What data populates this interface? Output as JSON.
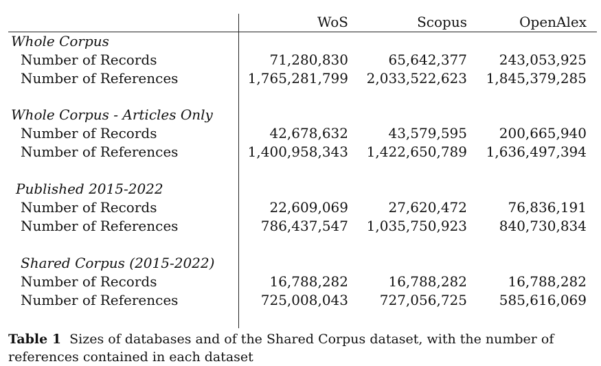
{
  "headers": [
    "WoS",
    "Scopus",
    "OpenAlex"
  ],
  "sections": [
    {
      "title": "Whole Corpus",
      "rows": [
        {
          "label": "Number of Records",
          "values": [
            "71,280,830",
            "65,642,377",
            "243,053,925"
          ]
        },
        {
          "label": "Number of References",
          "values": [
            "1,765,281,799",
            "2,033,522,623",
            "1,845,379,285"
          ]
        }
      ]
    },
    {
      "title": "Whole Corpus - Articles Only",
      "rows": [
        {
          "label": "Number of Records",
          "values": [
            "42,678,632",
            "43,579,595",
            "200,665,940"
          ]
        },
        {
          "label": "Number of References",
          "values": [
            "1,400,958,343",
            "1,422,650,789",
            "1,636,497,394"
          ]
        }
      ]
    },
    {
      "title": "Published 2015-2022",
      "rows": [
        {
          "label": "Number of Records",
          "values": [
            "22,609,069",
            "27,620,472",
            "76,836,191"
          ]
        },
        {
          "label": "Number of References",
          "values": [
            "786,437,547",
            "1,035,750,923",
            "840,730,834"
          ]
        }
      ]
    },
    {
      "title": "Shared Corpus (2015-2022)",
      "rows": [
        {
          "label": "Number of Records",
          "values": [
            "16,788,282",
            "16,788,282",
            "16,788,282"
          ]
        },
        {
          "label": "Number of References",
          "values": [
            "725,008,043",
            "727,056,725",
            "585,616,069"
          ]
        }
      ]
    }
  ],
  "caption": {
    "label": "Table 1",
    "text": "Sizes of databases and of the Shared Corpus dataset, with the number of references contained in each dataset"
  }
}
